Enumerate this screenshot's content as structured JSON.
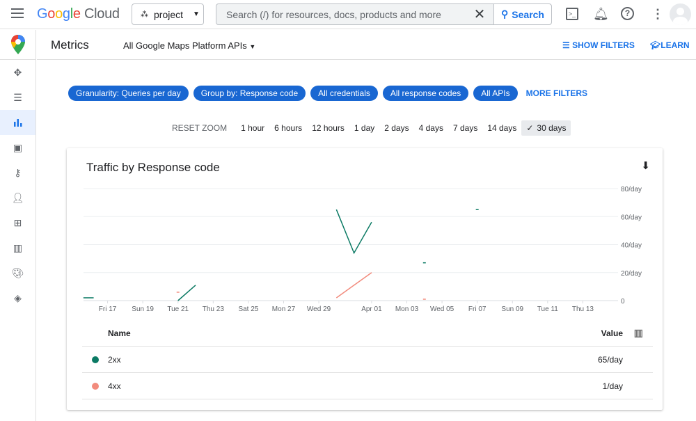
{
  "topbar": {
    "logo": "Google Cloud",
    "project": "project",
    "search_placeholder": "Search (/) for resources, docs, products and more",
    "search_button": "Search"
  },
  "header": {
    "title": "Metrics",
    "api_select": "All Google Maps Platform APIs",
    "show_filters": "SHOW FILTERS",
    "learn": "LEARN"
  },
  "sidebar": {
    "items": [
      "move-icon",
      "list-icon",
      "metrics-icon",
      "quotas-icon",
      "key-icon",
      "person-icon",
      "apps-icon",
      "map-icon",
      "palette-icon",
      "layers-icon"
    ],
    "active": "metrics-icon"
  },
  "filters": {
    "chips": [
      "Granularity: Queries per day",
      "Group by: Response code",
      "All credentials",
      "All response codes",
      "All APIs"
    ],
    "more": "MORE FILTERS"
  },
  "zoom": {
    "reset": "RESET ZOOM",
    "options": [
      "1 hour",
      "6 hours",
      "12 hours",
      "1 day",
      "2 days",
      "4 days",
      "7 days",
      "14 days",
      "30 days"
    ],
    "selected": "30 days"
  },
  "chart_data": {
    "type": "line",
    "title": "Traffic by Response code",
    "xlabel": "",
    "ylabel": "",
    "x_ticks": [
      "Fri 17",
      "Sun 19",
      "Tue 21",
      "Thu 23",
      "Sat 25",
      "Mon 27",
      "Wed 29",
      "Apr 01",
      "Mon 03",
      "Wed 05",
      "Fri 07",
      "Sun 09",
      "Tue 11",
      "Thu 13"
    ],
    "x_tick_dates": [
      "2023-03-17",
      "2023-03-19",
      "2023-03-21",
      "2023-03-23",
      "2023-03-25",
      "2023-03-27",
      "2023-03-29",
      "2023-04-01",
      "2023-04-03",
      "2023-04-05",
      "2023-04-07",
      "2023-04-09",
      "2023-04-11",
      "2023-04-13"
    ],
    "xlim": [
      "2023-03-15",
      "2023-04-15"
    ],
    "y_ticks": [
      "0",
      "20/day",
      "40/day",
      "60/day",
      "80/day"
    ],
    "ylim": [
      0,
      80
    ],
    "grid": true,
    "series": [
      {
        "name": "2xx",
        "color": "#0b7a64",
        "segments": [
          [
            [
              "2023-03-15T15:00",
              2
            ],
            [
              "2023-03-16T05:00",
              2
            ]
          ],
          [
            [
              "2023-03-21",
              0
            ],
            [
              "2023-03-22",
              11
            ]
          ],
          [
            [
              "2023-03-30",
              65
            ],
            [
              "2023-03-31",
              34
            ],
            [
              "2023-04-01",
              56
            ]
          ],
          [
            [
              "2023-04-04",
              27
            ]
          ],
          [
            [
              "2023-04-07",
              65
            ]
          ]
        ]
      },
      {
        "name": "4xx",
        "color": "#f28b7d",
        "segments": [
          [
            [
              "2023-03-21",
              6
            ]
          ],
          [
            [
              "2023-03-30",
              2
            ],
            [
              "2023-04-01",
              20
            ]
          ],
          [
            [
              "2023-04-04",
              1
            ]
          ]
        ]
      }
    ]
  },
  "table": {
    "headers": {
      "name": "Name",
      "value": "Value"
    },
    "rows": [
      {
        "name": "2xx",
        "value": "65/day",
        "color": "#0b7a64"
      },
      {
        "name": "4xx",
        "value": "1/day",
        "color": "#f28b7d"
      }
    ]
  }
}
